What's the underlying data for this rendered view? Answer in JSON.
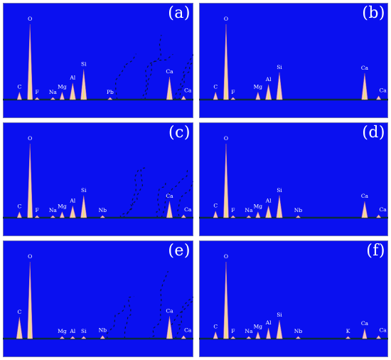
{
  "colors": {
    "background": "#0a10f0",
    "peak_fill": "#f2c6c8",
    "peak_core": "#f2ee50",
    "baseline": "#0a2a40",
    "noise": "#061040",
    "label": "#ffffff"
  },
  "chart_data": [
    {
      "type": "area",
      "panel_label": "(a)",
      "x_max": 10,
      "y_max": 100,
      "noisy": true,
      "peaks": [
        {
          "element": "C",
          "x": 0.28,
          "y": 10
        },
        {
          "element": "O",
          "x": 0.52,
          "y": 100
        },
        {
          "element": "F",
          "x": 0.68,
          "y": 3
        },
        {
          "element": "Na",
          "x": 1.04,
          "y": 3
        },
        {
          "element": "Mg",
          "x": 1.25,
          "y": 10
        },
        {
          "element": "Al",
          "x": 1.49,
          "y": 22
        },
        {
          "element": "Si",
          "x": 1.74,
          "y": 40
        },
        {
          "element": "Pb",
          "x": 2.34,
          "y": 3
        },
        {
          "element": "Ca",
          "x": 3.69,
          "y": 30
        },
        {
          "element": "Ca",
          "x": 4.01,
          "y": 5
        }
      ]
    },
    {
      "type": "area",
      "panel_label": "(b)",
      "x_max": 10,
      "y_max": 100,
      "noisy": false,
      "peaks": [
        {
          "element": "C",
          "x": 0.28,
          "y": 10
        },
        {
          "element": "O",
          "x": 0.52,
          "y": 100
        },
        {
          "element": "F",
          "x": 0.68,
          "y": 3
        },
        {
          "element": "Mg",
          "x": 1.25,
          "y": 10
        },
        {
          "element": "Al",
          "x": 1.49,
          "y": 20
        },
        {
          "element": "Si",
          "x": 1.74,
          "y": 36
        },
        {
          "element": "Ca",
          "x": 3.69,
          "y": 35
        },
        {
          "element": "Ca",
          "x": 4.01,
          "y": 5
        }
      ]
    },
    {
      "type": "area",
      "panel_label": "(c)",
      "x_max": 10,
      "y_max": 100,
      "noisy": true,
      "peaks": [
        {
          "element": "C",
          "x": 0.28,
          "y": 8
        },
        {
          "element": "O",
          "x": 0.52,
          "y": 100
        },
        {
          "element": "F",
          "x": 0.68,
          "y": 3
        },
        {
          "element": "Na",
          "x": 1.04,
          "y": 3
        },
        {
          "element": "Mg",
          "x": 1.25,
          "y": 8
        },
        {
          "element": "Al",
          "x": 1.49,
          "y": 16
        },
        {
          "element": "Si",
          "x": 1.74,
          "y": 30
        },
        {
          "element": "Nb",
          "x": 2.17,
          "y": 3
        },
        {
          "element": "Ca",
          "x": 3.69,
          "y": 22
        },
        {
          "element": "Ca",
          "x": 4.01,
          "y": 4
        }
      ]
    },
    {
      "type": "area",
      "panel_label": "(d)",
      "x_max": 10,
      "y_max": 100,
      "noisy": false,
      "peaks": [
        {
          "element": "C",
          "x": 0.28,
          "y": 9
        },
        {
          "element": "O",
          "x": 0.52,
          "y": 100
        },
        {
          "element": "F",
          "x": 0.68,
          "y": 3
        },
        {
          "element": "Na",
          "x": 1.04,
          "y": 3
        },
        {
          "element": "Mg",
          "x": 1.25,
          "y": 8
        },
        {
          "element": "Al",
          "x": 1.49,
          "y": 16
        },
        {
          "element": "Si",
          "x": 1.74,
          "y": 30
        },
        {
          "element": "Nb",
          "x": 2.17,
          "y": 3
        },
        {
          "element": "Ca",
          "x": 3.69,
          "y": 22
        },
        {
          "element": "Ca",
          "x": 4.01,
          "y": 4
        }
      ]
    },
    {
      "type": "area",
      "panel_label": "(e)",
      "x_max": 10,
      "y_max": 100,
      "noisy": true,
      "peaks": [
        {
          "element": "C",
          "x": 0.28,
          "y": 28
        },
        {
          "element": "O",
          "x": 0.52,
          "y": 100
        },
        {
          "element": "Mg",
          "x": 1.25,
          "y": 3
        },
        {
          "element": "Al",
          "x": 1.49,
          "y": 3
        },
        {
          "element": "Si",
          "x": 1.74,
          "y": 3
        },
        {
          "element": "Nb",
          "x": 2.17,
          "y": 4
        },
        {
          "element": "Ca",
          "x": 3.69,
          "y": 29
        },
        {
          "element": "Ca",
          "x": 4.01,
          "y": 4
        }
      ]
    },
    {
      "type": "area",
      "panel_label": "(f)",
      "x_max": 10,
      "y_max": 100,
      "noisy": false,
      "peaks": [
        {
          "element": "C",
          "x": 0.28,
          "y": 9
        },
        {
          "element": "O",
          "x": 0.52,
          "y": 100
        },
        {
          "element": "F",
          "x": 0.68,
          "y": 3
        },
        {
          "element": "Na",
          "x": 1.04,
          "y": 3
        },
        {
          "element": "Mg",
          "x": 1.25,
          "y": 9
        },
        {
          "element": "Al",
          "x": 1.49,
          "y": 14
        },
        {
          "element": "Si",
          "x": 1.74,
          "y": 24
        },
        {
          "element": "Nb",
          "x": 2.17,
          "y": 3
        },
        {
          "element": "K",
          "x": 3.31,
          "y": 3
        },
        {
          "element": "Ca",
          "x": 3.69,
          "y": 13
        },
        {
          "element": "Ca",
          "x": 4.01,
          "y": 4
        }
      ]
    }
  ]
}
